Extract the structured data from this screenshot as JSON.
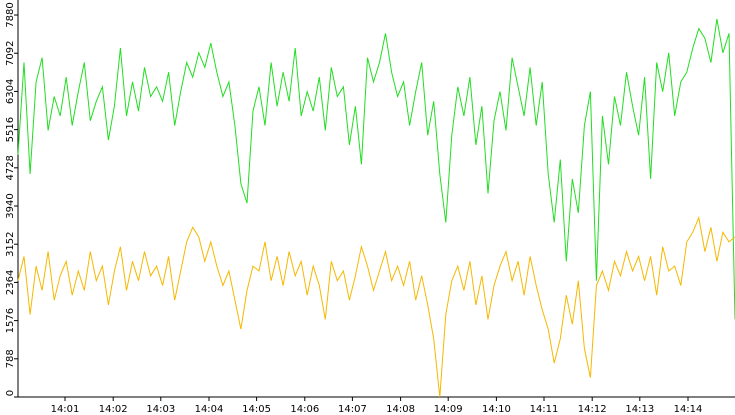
{
  "chart_data": {
    "type": "line",
    "series": [
      {
        "color": "#22dd22",
        "values": [
          5000,
          6900,
          4600,
          6500,
          7000,
          5500,
          6200,
          5800,
          6600,
          5600,
          6300,
          6900,
          5700,
          6100,
          6400,
          5300,
          6000,
          7200,
          5800,
          6500,
          5900,
          6800,
          6200,
          6400,
          6100,
          6700,
          5600,
          6300,
          6900,
          6600,
          7100,
          6800,
          7300,
          6700,
          6200,
          6500,
          5600,
          4400,
          4000,
          5900,
          6400,
          5600,
          6900,
          6000,
          6700,
          6100,
          7200,
          5800,
          6300,
          5900,
          6600,
          5500,
          6800,
          6200,
          6400,
          5200,
          6000,
          4800,
          7000,
          6500,
          6900,
          7500,
          6700,
          6200,
          6500,
          5600,
          6300,
          6900,
          5400,
          6100,
          4600,
          3600,
          5400,
          6400,
          5800,
          6600,
          5200,
          6000,
          4200,
          5700,
          6300,
          5500,
          7000,
          6400,
          5800,
          6800,
          5600,
          6500,
          4600,
          3600,
          4900,
          2800,
          4500,
          3800,
          5600,
          6300,
          2400,
          5800,
          4800,
          6200,
          5600,
          6700,
          6000,
          5400,
          6600,
          4500,
          6900,
          6300,
          7100,
          5800,
          6500,
          6700,
          7200,
          7600,
          7400,
          6900,
          7800,
          7100,
          7500,
          1600
        ]
      },
      {
        "color": "#f5b800",
        "values": [
          2400,
          2900,
          1700,
          2700,
          2200,
          3000,
          2000,
          2500,
          2800,
          2100,
          2600,
          2200,
          3000,
          2400,
          2700,
          1900,
          2600,
          3100,
          2200,
          2800,
          2400,
          3000,
          2500,
          2700,
          2300,
          2900,
          2000,
          2600,
          3200,
          3500,
          3300,
          2800,
          3200,
          2700,
          2300,
          2600,
          2000,
          1400,
          2200,
          2700,
          2600,
          3200,
          2400,
          2900,
          2300,
          3000,
          2500,
          2800,
          2100,
          2700,
          2300,
          1600,
          2800,
          2400,
          2600,
          2000,
          2500,
          3100,
          2700,
          2200,
          2600,
          3000,
          2400,
          2700,
          2300,
          2800,
          2000,
          2500,
          1900,
          1200,
          0,
          1700,
          2400,
          2700,
          2200,
          2800,
          1900,
          2500,
          1600,
          2300,
          2700,
          3000,
          2400,
          2800,
          2100,
          2900,
          2300,
          1800,
          1400,
          700,
          1200,
          2100,
          1500,
          2400,
          1000,
          400,
          2300,
          2600,
          2200,
          2800,
          2500,
          3000,
          2600,
          2900,
          2400,
          2900,
          2100,
          3100,
          2600,
          2700,
          2300,
          3200,
          3400,
          3700,
          3000,
          3500,
          2800,
          3400,
          3200,
          3300
        ]
      }
    ],
    "xlim": [
      0,
      119
    ],
    "xticks": [
      {
        "value": 7.8,
        "label": "14:01"
      },
      {
        "value": 15.8,
        "label": "14:02"
      },
      {
        "value": 23.7,
        "label": "14:03"
      },
      {
        "value": 31.7,
        "label": "14:04"
      },
      {
        "value": 39.6,
        "label": "14:05"
      },
      {
        "value": 47.6,
        "label": "14:06"
      },
      {
        "value": 55.5,
        "label": "14:07"
      },
      {
        "value": 63.5,
        "label": "14:08"
      },
      {
        "value": 71.4,
        "label": "14:09"
      },
      {
        "value": 79.4,
        "label": "14:10"
      },
      {
        "value": 87.3,
        "label": "14:11"
      },
      {
        "value": 95.3,
        "label": "14:12"
      },
      {
        "value": 103.2,
        "label": "14:13"
      },
      {
        "value": 111.2,
        "label": "14:14"
      }
    ],
    "ylim": [
      0,
      8190
    ],
    "yticks": [
      0,
      788,
      1576,
      2364,
      3152,
      3940,
      4728,
      5516,
      6304,
      7092,
      7880
    ]
  }
}
